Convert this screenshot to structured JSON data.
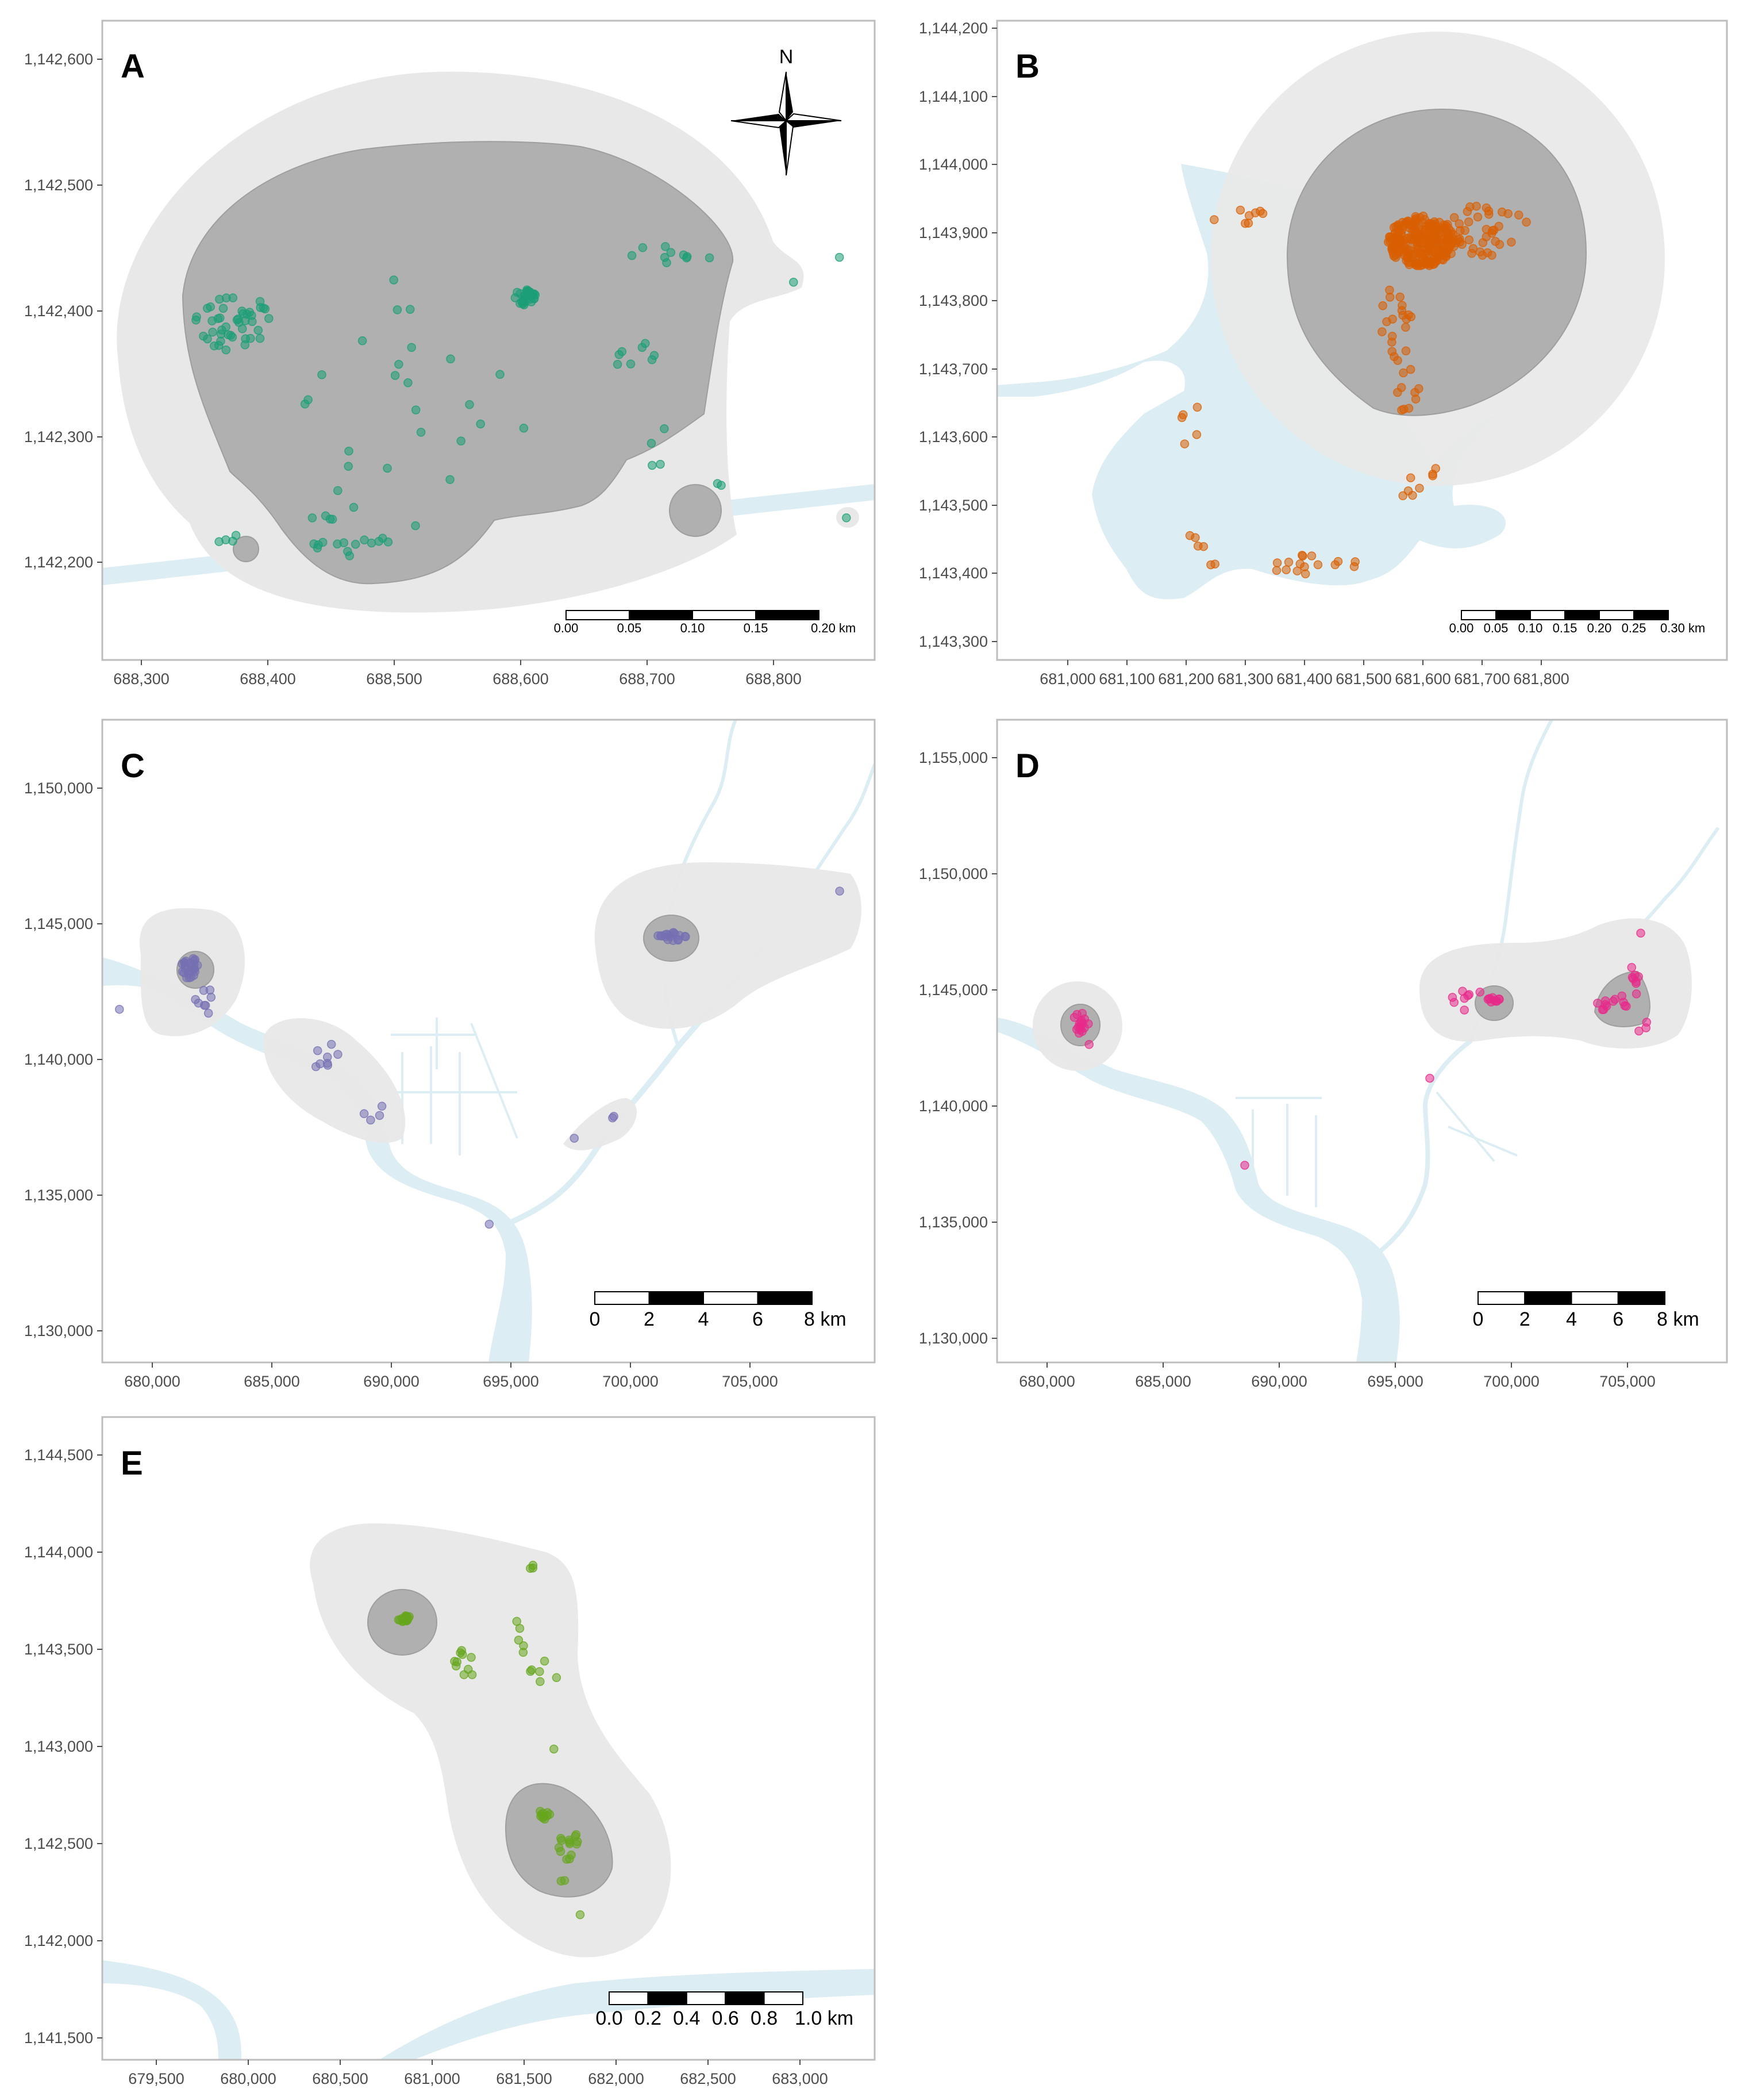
{
  "figure": "Home range maps (panels A–E)",
  "colors": {
    "outer_range": "#e8e8e8",
    "core_range": "#b0b0b0",
    "water": "#dcedf3",
    "frame": "#bdbdbd"
  },
  "panels": [
    {
      "id": "A",
      "letter": "A",
      "point_color": "#1b9e77",
      "x_ticks": [
        "688,300",
        "688,400",
        "688,500",
        "688,600",
        "688,700",
        "688,800"
      ],
      "y_ticks": [
        "1,142,600",
        "1,142,500",
        "1,142,400",
        "1,142,300",
        "1,142,200"
      ],
      "scale_bar": {
        "labels": [
          "0.00",
          "0.05",
          "0.10",
          "0.15",
          "0.20 km"
        ]
      },
      "compass": {
        "label": "N"
      }
    },
    {
      "id": "B",
      "letter": "B",
      "point_color": "#d95f02",
      "x_ticks": [
        "681,000",
        "681,100",
        "681,200",
        "681,300",
        "681,400",
        "681,500",
        "681,600",
        "681,700",
        "681,800"
      ],
      "y_ticks": [
        "1,144,200",
        "1,144,100",
        "1,144,000",
        "1,143,900",
        "1,143,800",
        "1,143,700",
        "1,143,600",
        "1,143,500",
        "1,143,400",
        "1,143,300"
      ],
      "scale_bar": {
        "labels": [
          "0.00",
          "0.05",
          "0.10",
          "0.15",
          "0.20",
          "0.25",
          "0.30 km"
        ]
      }
    },
    {
      "id": "C",
      "letter": "C",
      "point_color": "#7570b3",
      "x_ticks": [
        "680,000",
        "685,000",
        "690,000",
        "695,000",
        "700,000",
        "705,000"
      ],
      "y_ticks": [
        "1,150,000",
        "1,145,000",
        "1,140,000",
        "1,135,000",
        "1,130,000"
      ],
      "scale_bar": {
        "labels": [
          "0",
          "2",
          "4",
          "6",
          "8 km"
        ]
      }
    },
    {
      "id": "D",
      "letter": "D",
      "point_color": "#e7298a",
      "x_ticks": [
        "680,000",
        "685,000",
        "690,000",
        "695,000",
        "700,000",
        "705,000"
      ],
      "y_ticks": [
        "1,155,000",
        "1,150,000",
        "1,145,000",
        "1,140,000",
        "1,135,000",
        "1,130,000"
      ],
      "scale_bar": {
        "labels": [
          "0",
          "2",
          "4",
          "6",
          "8 km"
        ]
      }
    },
    {
      "id": "E",
      "letter": "E",
      "point_color": "#66a61e",
      "x_ticks": [
        "679,500",
        "680,000",
        "680,500",
        "681,000",
        "681,500",
        "682,000",
        "682,500",
        "683,000"
      ],
      "y_ticks": [
        "1,144,500",
        "1,144,000",
        "1,143,500",
        "1,143,000",
        "1,142,500",
        "1,142,000",
        "1,141,500"
      ],
      "scale_bar": {
        "labels": [
          "0.0",
          "0.2",
          "0.4",
          "0.6",
          "0.8",
          "1.0 km"
        ]
      }
    }
  ]
}
